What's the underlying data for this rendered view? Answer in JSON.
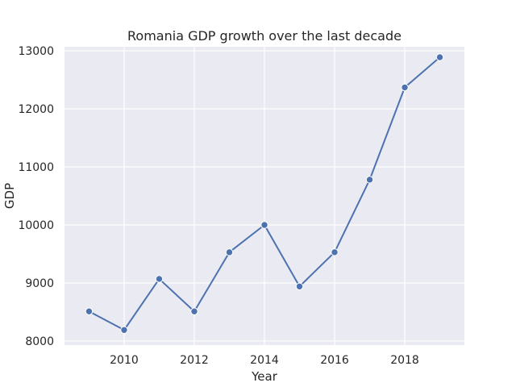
{
  "chart_data": {
    "type": "line",
    "title": "Romania GDP growth over the last decade",
    "xlabel": "Year",
    "ylabel": "GDP",
    "x": [
      2009,
      2010,
      2011,
      2012,
      2013,
      2014,
      2015,
      2016,
      2017,
      2018,
      2019
    ],
    "series": [
      {
        "values": [
          8510,
          8190,
          9070,
          8510,
          9530,
          10000,
          8940,
          9530,
          10780,
          12370,
          12890
        ]
      }
    ],
    "xlim": [
      2008.3,
      2019.7
    ],
    "ylim": [
      7930,
      13070
    ],
    "xticks": [
      2010,
      2012,
      2014,
      2016,
      2018
    ],
    "yticks": [
      8000,
      9000,
      10000,
      11000,
      12000,
      13000
    ],
    "grid": true,
    "line_color": "#4c72b0",
    "background_color": "#eaeaf2",
    "grid_color": "#ffffff",
    "marker": "circle"
  }
}
